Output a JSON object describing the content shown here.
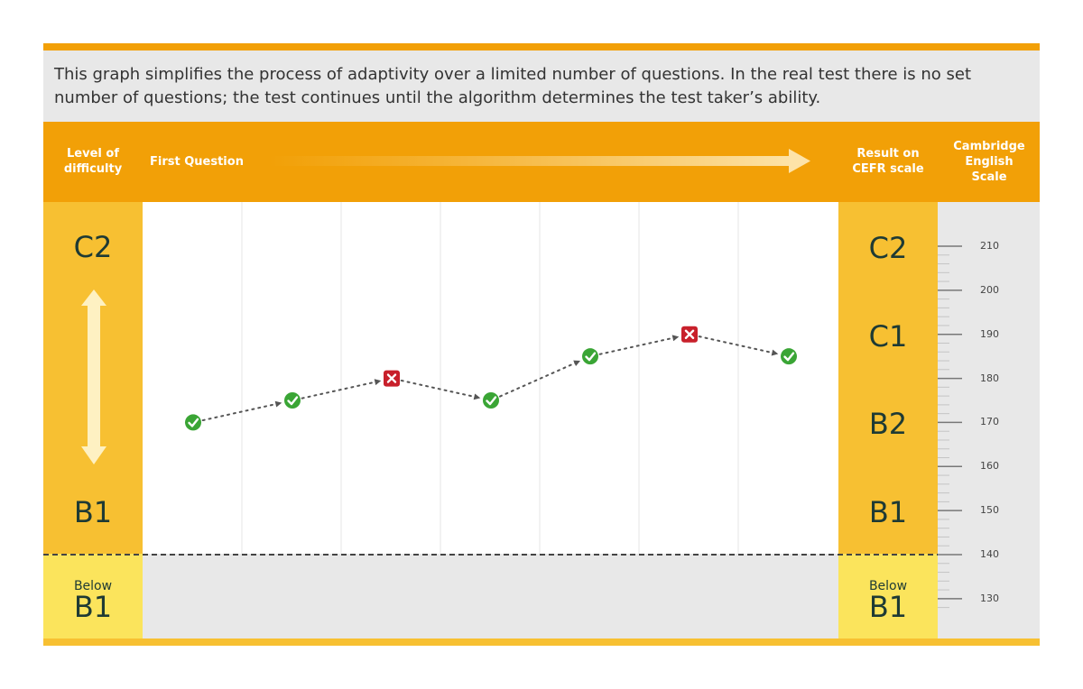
{
  "intro": {
    "text": "This graph simplifies the process of adaptivity over a limited number of questions. In the real test there is no set number of questions; the test continues until the algorithm determines the test taker’s ability."
  },
  "header": {
    "level_of_difficulty": "Level of difficulty",
    "first_question": "First Question",
    "result_on_cefr": "Result on CEFR scale",
    "cambridge_scale": "Cambridge English Scale"
  },
  "left_levels": {
    "top": "C2",
    "bottom": "B1",
    "below_small": "Below",
    "below_big": "B1"
  },
  "right_levels": {
    "c2": "C2",
    "c1": "C1",
    "b2": "B2",
    "b1": "B1",
    "below_small": "Below",
    "below_big": "B1"
  },
  "scale_ticks": [
    "210",
    "200",
    "190",
    "180",
    "170",
    "160",
    "150",
    "140",
    "130"
  ],
  "colors": {
    "orange": "#f2a007",
    "gold": "#f7c032",
    "pale_yellow": "#fbe45c",
    "correct": "#3aa535",
    "incorrect": "#c8202b",
    "text_dark": "#1e3a34"
  },
  "chart_data": {
    "type": "line",
    "x": [
      1,
      2,
      3,
      4,
      5,
      6,
      7
    ],
    "values": [
      170,
      175,
      180,
      175,
      185,
      190,
      185
    ],
    "answers": [
      "correct",
      "correct",
      "incorrect",
      "correct",
      "correct",
      "incorrect",
      "correct"
    ],
    "icons": [
      "check-icon",
      "check-icon",
      "cross-icon",
      "check-icon",
      "check-icon",
      "cross-icon",
      "check-icon"
    ],
    "ylim": [
      140,
      210
    ],
    "threshold": 140,
    "grid": true
  }
}
